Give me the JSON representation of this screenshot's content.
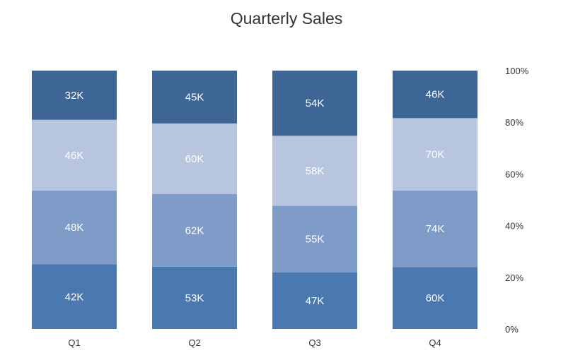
{
  "chart_data": {
    "type": "bar",
    "stacked": true,
    "normalized": true,
    "title": "Quarterly Sales",
    "xlabel": "",
    "ylabel": "",
    "categories": [
      "Q1",
      "Q2",
      "Q3",
      "Q4"
    ],
    "series": [
      {
        "values": [
          42,
          53,
          47,
          60
        ],
        "labels": [
          "42K",
          "53K",
          "47K",
          "60K"
        ],
        "color": "#4a78b0"
      },
      {
        "values": [
          48,
          62,
          55,
          74
        ],
        "labels": [
          "48K",
          "62K",
          "55K",
          "74K"
        ],
        "color": "#7e9cc7"
      },
      {
        "values": [
          46,
          60,
          58,
          70
        ],
        "labels": [
          "46K",
          "60K",
          "58K",
          "70K"
        ],
        "color": "#b7c5df"
      },
      {
        "values": [
          32,
          45,
          54,
          46
        ],
        "labels": [
          "32K",
          "45K",
          "54K",
          "46K"
        ],
        "color": "#3d6596"
      }
    ],
    "y_axis": {
      "position": "right",
      "ylim": [
        0,
        100
      ],
      "ticks": [
        "0%",
        "20%",
        "40%",
        "60%",
        "80%",
        "100%"
      ]
    },
    "grid": false,
    "legend": "none"
  }
}
